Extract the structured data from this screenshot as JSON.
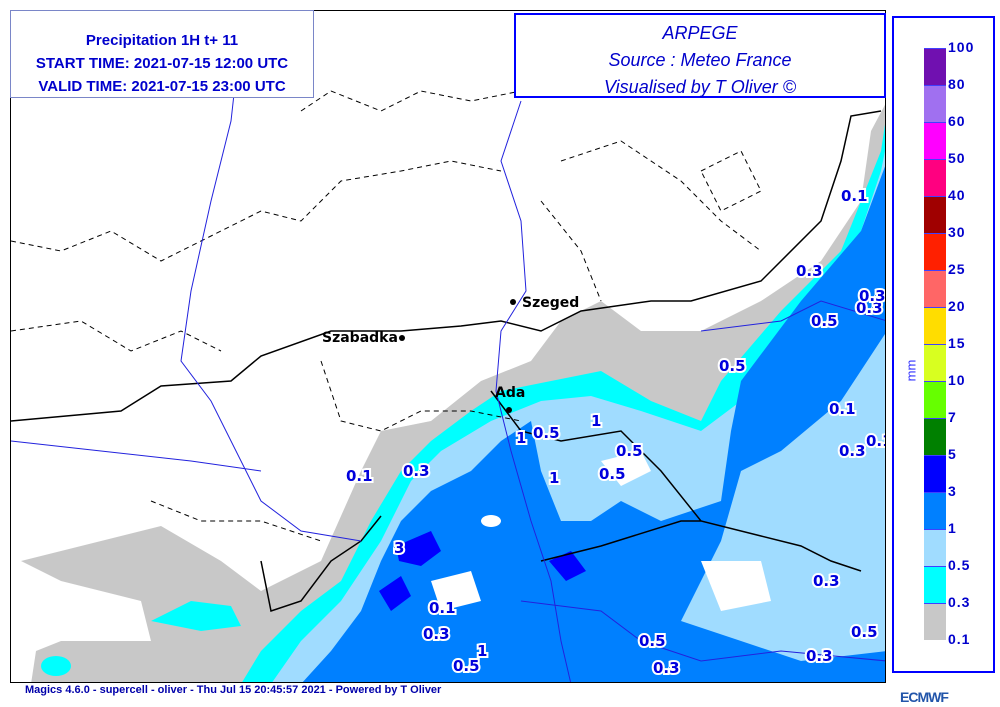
{
  "title": {
    "line1": "Precipitation 1H  t+ 11",
    "line2": "START TIME: 2021-07-15 12:00 UTC",
    "line3": "VALID TIME: 2021-07-15 23:00 UTC"
  },
  "source": {
    "model": "ARPEGE",
    "source": "Source : Meteo France",
    "credit": "Visualised by T Oliver ©"
  },
  "legend": {
    "unit": "mm",
    "levels": [
      "0.1",
      "0.3",
      "0.5",
      "1",
      "3",
      "5",
      "7",
      "10",
      "15",
      "20",
      "25",
      "30",
      "40",
      "50",
      "60",
      "80",
      "100"
    ],
    "colors": [
      "#c8c8c8",
      "#00ffff",
      "#a0dcff",
      "#0080ff",
      "#0000ff",
      "#008000",
      "#66ff00",
      "#d8ff20",
      "#ffdd00",
      "#ff6666",
      "#ff2000",
      "#a00000",
      "#ff0080",
      "#ff00ff",
      "#a070f0",
      "#7010b0"
    ]
  },
  "map": {
    "cities": [
      "Szeged",
      "Szabadka",
      "Ada"
    ],
    "contour_labels": [
      "0.1",
      "0.3",
      "0.5",
      "0.3",
      "0.5",
      "0.1",
      "0.3",
      "0.1",
      "0.1",
      "0.3",
      "1",
      "0.5",
      "1",
      "0.5",
      "0.5",
      "1",
      "3",
      "0.1",
      "0.3",
      "0.5",
      "1",
      "0.5",
      "0.3",
      "0.3",
      "0.3",
      "0.5",
      "0.3"
    ]
  },
  "footer": "Magics 4.6.0 - supercell - oliver - Thu Jul 15 20:45:57 2021 - Powered by T Oliver",
  "logo": "ECMWF"
}
